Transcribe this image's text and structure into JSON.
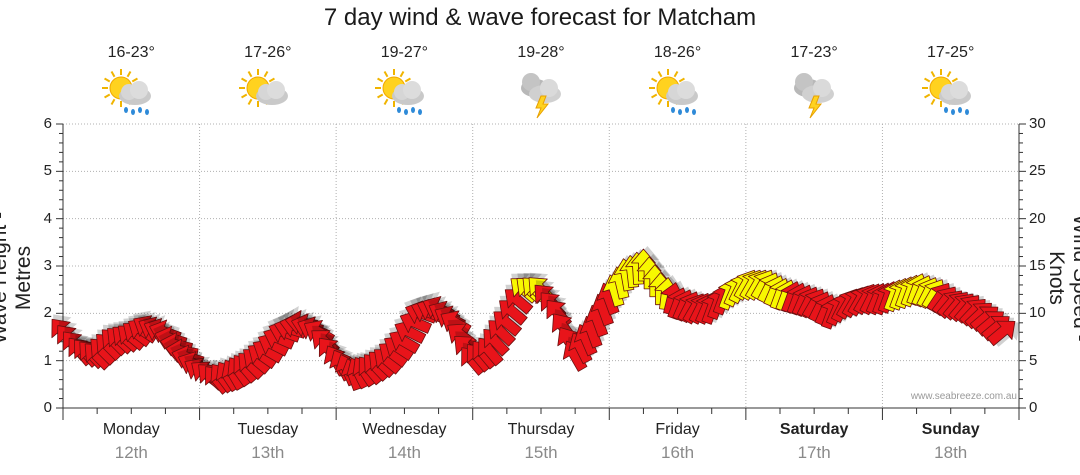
{
  "chart_data": {
    "type": "line",
    "title": "7 day wind & wave forecast for Matcham",
    "ylabel_left": "Wave Height - Metres",
    "ylabel_right": "Wind Speed - Knots",
    "ylim_left": [
      0,
      6
    ],
    "ylim_right": [
      0,
      30
    ],
    "left_ticks": [
      "0",
      "1",
      "2",
      "3",
      "4",
      "5",
      "6"
    ],
    "right_ticks": [
      "0",
      "5",
      "10",
      "15",
      "20",
      "25",
      "30"
    ],
    "days": [
      {
        "day": "Monday",
        "date": "12th",
        "temp": "16-23°",
        "icon": "sun-cloud-rain-icon",
        "bold": false
      },
      {
        "day": "Tuesday",
        "date": "13th",
        "temp": "17-26°",
        "icon": "sun-cloud-icon",
        "bold": false
      },
      {
        "day": "Wednesday",
        "date": "14th",
        "temp": "19-27°",
        "icon": "sun-cloud-rain-icon",
        "bold": false
      },
      {
        "day": "Thursday",
        "date": "15th",
        "temp": "19-28°",
        "icon": "storm-icon",
        "bold": false
      },
      {
        "day": "Friday",
        "date": "16th",
        "temp": "18-26°",
        "icon": "sun-cloud-rain-icon",
        "bold": false
      },
      {
        "day": "Saturday",
        "date": "17th",
        "temp": "17-23°",
        "icon": "storm-icon",
        "bold": true
      },
      {
        "day": "Sunday",
        "date": "18th",
        "temp": "17-25°",
        "icon": "sun-cloud-rain-icon",
        "bold": true
      }
    ],
    "wind_series": {
      "name": "Wind speed (knots) with direction arrows, 3-hourly",
      "units": "knots",
      "x_hours": [
        0,
        3,
        6,
        9,
        12,
        15,
        18,
        21,
        24,
        27,
        30,
        33,
        36,
        39,
        42,
        45,
        48,
        51,
        54,
        57,
        60,
        63,
        66,
        69,
        72,
        75,
        78,
        81,
        84,
        87,
        90,
        93,
        96,
        99,
        102,
        105,
        108,
        111,
        114,
        117,
        120,
        123,
        126,
        129,
        132,
        135,
        138,
        141,
        144,
        147,
        150,
        153,
        156,
        159,
        162,
        165
      ],
      "speed_kts": [
        8,
        6,
        5.5,
        7,
        7.5,
        8.5,
        8,
        6,
        4,
        3,
        3.5,
        4.5,
        6,
        8,
        9,
        8,
        5,
        3.5,
        4,
        5,
        7,
        10,
        10.5,
        9,
        5,
        6,
        9,
        12.5,
        12.5,
        10,
        5.5,
        8,
        11.5,
        14,
        15,
        12.5,
        11,
        10.5,
        10.5,
        12,
        13,
        13,
        12,
        11.5,
        11,
        10,
        11,
        11.5,
        11.5,
        12,
        12.5,
        12,
        11,
        10.5,
        9.5,
        8
      ],
      "direction_deg": [
        140,
        140,
        135,
        135,
        130,
        120,
        110,
        100,
        120,
        140,
        150,
        135,
        120,
        110,
        100,
        120,
        150,
        160,
        140,
        130,
        120,
        110,
        115,
        120,
        140,
        140,
        130,
        130,
        135,
        140,
        150,
        160,
        160,
        170,
        180,
        180,
        200,
        210,
        200,
        200,
        210,
        210,
        200,
        200,
        210,
        200,
        210,
        210,
        200,
        200,
        200,
        210,
        220,
        220,
        230,
        230
      ],
      "color_scale": {
        "red": "#e8141a",
        "yellow": "#f8f800"
      }
    },
    "wave_series": {
      "name": "Wave height",
      "units": "metres",
      "values": []
    }
  },
  "credit": "www.seabreeze.com.au"
}
